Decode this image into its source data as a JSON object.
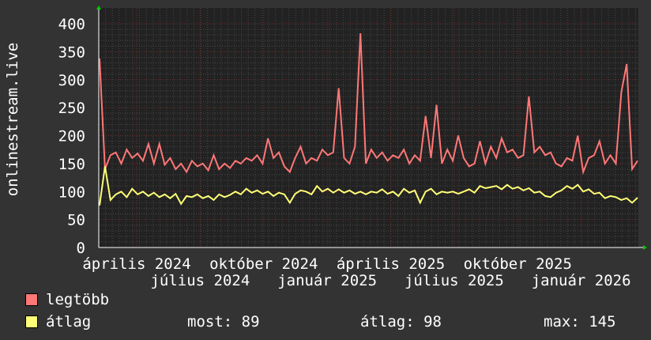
{
  "chart_data": {
    "type": "line",
    "ylabel": "onlinestream.live",
    "ylim": [
      0,
      400
    ],
    "yticks": [
      "0",
      "50",
      "100",
      "150",
      "200",
      "250",
      "300",
      "350",
      "400"
    ],
    "xtick_labels": [
      "április 2024",
      "július 2024",
      "október 2024",
      "január 2025",
      "április 2025",
      "július 2025",
      "október 2025",
      "január 2026"
    ],
    "grid": true,
    "series": [
      {
        "name": "legtöbb",
        "color": "#ff7777",
        "values": [
          338,
          140,
          165,
          170,
          150,
          175,
          160,
          168,
          155,
          185,
          150,
          185,
          148,
          160,
          140,
          150,
          135,
          155,
          145,
          150,
          138,
          165,
          140,
          150,
          142,
          155,
          150,
          160,
          155,
          165,
          150,
          195,
          160,
          170,
          145,
          135,
          160,
          180,
          150,
          160,
          155,
          175,
          165,
          170,
          285,
          160,
          150,
          180,
          383,
          150,
          175,
          160,
          170,
          155,
          165,
          160,
          175,
          150,
          165,
          155,
          235,
          160,
          255,
          150,
          175,
          155,
          200,
          160,
          145,
          150,
          190,
          150,
          180,
          160,
          195,
          170,
          175,
          160,
          165,
          270,
          170,
          180,
          165,
          170,
          150,
          145,
          160,
          155,
          200,
          135,
          160,
          165,
          190,
          150,
          165,
          150,
          277,
          328,
          140,
          155
        ]
      },
      {
        "name": "átlag",
        "color": "#ffff77",
        "values": [
          75,
          145,
          85,
          95,
          100,
          90,
          105,
          95,
          100,
          92,
          98,
          90,
          95,
          88,
          96,
          78,
          92,
          90,
          95,
          88,
          92,
          85,
          95,
          90,
          94,
          100,
          95,
          105,
          98,
          102,
          96,
          100,
          92,
          98,
          95,
          80,
          96,
          102,
          100,
          95,
          110,
          100,
          105,
          98,
          104,
          98,
          102,
          96,
          100,
          95,
          100,
          98,
          104,
          96,
          100,
          92,
          105,
          98,
          102,
          80,
          100,
          105,
          95,
          100,
          98,
          100,
          96,
          100,
          104,
          98,
          110,
          106,
          108,
          110,
          104,
          112,
          105,
          108,
          102,
          106,
          98,
          100,
          92,
          90,
          98,
          102,
          110,
          105,
          112,
          100,
          104,
          96,
          98,
          88,
          92,
          90,
          85,
          88,
          80,
          89
        ]
      }
    ]
  },
  "legend": {
    "max_label": "legtöbb",
    "avg_label": "átlag",
    "now": "most: 89",
    "average": "átlag: 98",
    "maximum": "max: 145"
  }
}
